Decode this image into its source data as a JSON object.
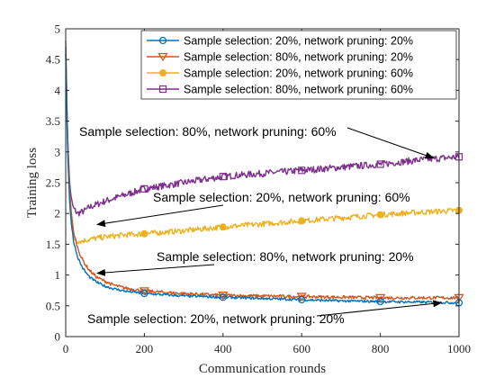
{
  "chart_data": {
    "type": "line",
    "xlabel": "Communication rounds",
    "ylabel": "Training loss",
    "xlim": [
      0,
      1000
    ],
    "ylim": [
      0,
      5
    ],
    "xticks": [
      0,
      200,
      400,
      600,
      800,
      1000
    ],
    "yticks": [
      0,
      0.5,
      1,
      1.5,
      2,
      2.5,
      3,
      3.5,
      4,
      4.5,
      5
    ],
    "grid": false,
    "legend": "top-right",
    "series": [
      {
        "name": "Sample selection: 20%, network pruning: 20%",
        "color": "#0072bd",
        "marker": "circle",
        "x": [
          0,
          5,
          10,
          15,
          20,
          30,
          40,
          50,
          60,
          80,
          100,
          120,
          150,
          200,
          250,
          300,
          400,
          500,
          600,
          700,
          800,
          900,
          1000
        ],
        "values": [
          4.7,
          3.0,
          2.2,
          1.8,
          1.55,
          1.3,
          1.15,
          1.05,
          0.97,
          0.88,
          0.82,
          0.78,
          0.74,
          0.7,
          0.68,
          0.66,
          0.64,
          0.62,
          0.6,
          0.58,
          0.57,
          0.56,
          0.55
        ]
      },
      {
        "name": "Sample selection: 80%, network pruning: 20%",
        "color": "#d95319",
        "marker": "triangle-down",
        "x": [
          0,
          5,
          10,
          15,
          20,
          30,
          40,
          50,
          60,
          80,
          100,
          120,
          150,
          200,
          250,
          300,
          400,
          500,
          600,
          700,
          800,
          900,
          1000
        ],
        "values": [
          4.8,
          3.2,
          2.4,
          1.95,
          1.7,
          1.45,
          1.28,
          1.17,
          1.08,
          0.96,
          0.9,
          0.84,
          0.79,
          0.74,
          0.72,
          0.7,
          0.67,
          0.66,
          0.65,
          0.64,
          0.63,
          0.63,
          0.63
        ]
      },
      {
        "name": "Sample selection: 20%, network pruning: 60%",
        "color": "#edb120",
        "marker": "circle-filled",
        "x": [
          0,
          5,
          10,
          15,
          20,
          30,
          40,
          60,
          80,
          100,
          150,
          200,
          300,
          400,
          500,
          600,
          700,
          800,
          900,
          1000
        ],
        "values": [
          4.6,
          3.0,
          2.2,
          1.75,
          1.6,
          1.55,
          1.55,
          1.58,
          1.6,
          1.62,
          1.65,
          1.67,
          1.72,
          1.78,
          1.83,
          1.88,
          1.93,
          1.98,
          2.02,
          2.05
        ]
      },
      {
        "name": "Sample selection: 80%, network pruning: 60%",
        "color": "#7e2f8e",
        "marker": "square",
        "x": [
          0,
          5,
          10,
          15,
          20,
          30,
          40,
          50,
          60,
          80,
          100,
          150,
          200,
          300,
          400,
          500,
          600,
          700,
          800,
          900,
          1000
        ],
        "values": [
          4.6,
          3.2,
          2.5,
          2.2,
          2.08,
          2.0,
          2.02,
          2.05,
          2.1,
          2.15,
          2.2,
          2.3,
          2.4,
          2.5,
          2.6,
          2.65,
          2.7,
          2.75,
          2.8,
          2.87,
          2.92
        ]
      }
    ],
    "annotations": [
      {
        "text": "Sample selection: 80%, network pruning: 60%",
        "arrow_to": [
          935,
          2.9
        ]
      },
      {
        "text": "Sample selection: 20%, network pruning: 60%",
        "arrow_to": [
          80,
          1.82
        ]
      },
      {
        "text": "Sample selection: 80%, network pruning: 20%",
        "arrow_to": [
          80,
          1.03
        ]
      },
      {
        "text": "Sample selection: 20%, network pruning: 20%",
        "arrow_to": [
          955,
          0.55
        ]
      }
    ]
  }
}
